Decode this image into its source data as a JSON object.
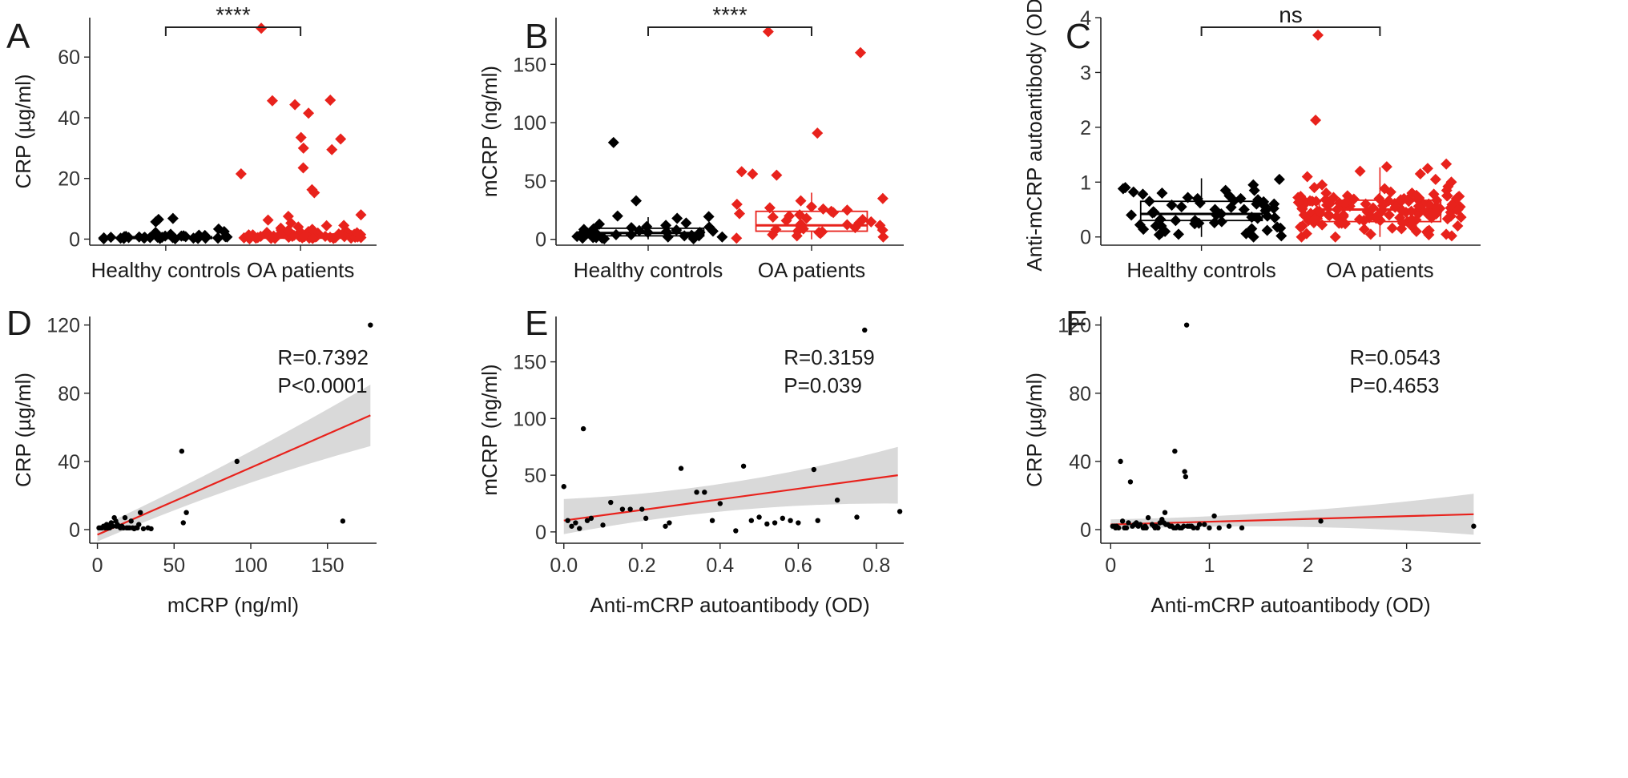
{
  "figure": {
    "colors": {
      "control": "#000000",
      "oa": "#e8221c",
      "fit_line": "#e8221c",
      "ci_band": "#d9d9d9",
      "scatter_point": "#000000"
    }
  },
  "chart_data": [
    {
      "panel": "A",
      "type": "box-scatter",
      "ylabel": "CRP (µg/ml)",
      "ylim": [
        -2,
        73
      ],
      "yticks": [
        0,
        20,
        40,
        60
      ],
      "categories": [
        "Healthy controls",
        "OA patients"
      ],
      "significance": "****",
      "series": [
        {
          "name": "Healthy controls",
          "color": "#000000",
          "box": {
            "q1": 0.2,
            "median": 0.5,
            "q3": 0.8,
            "whisker_low": 0,
            "whisker_high": 1.3
          },
          "values": [
            0.1,
            0.3,
            0.6,
            6.8,
            0.5,
            0.2,
            1.0,
            0.8,
            0.4,
            1.6,
            2.5,
            0.3,
            0.9,
            0.7,
            1.2,
            6.5,
            3.3,
            0.6,
            1.1,
            0.4,
            0.2,
            0.5,
            0.8,
            5.7,
            0.3,
            0.6,
            1.0,
            0.4,
            0.2,
            1.5,
            0.9,
            0.3,
            0.7,
            2.2,
            0.5,
            0.1,
            0.8,
            0.4,
            0.6,
            1.3
          ]
        },
        {
          "name": "OA patients",
          "color": "#e8221c",
          "box": {
            "q1": 0.3,
            "median": 0.9,
            "q3": 1.7,
            "whisker_low": 0,
            "whisker_high": 3.5
          },
          "values": [
            69.5,
            45.8,
            41.5,
            44.3,
            45.6,
            33,
            29.5,
            33.5,
            30,
            23.5,
            21.5,
            16.3,
            15.3,
            7.5,
            4.5,
            3.6,
            5.3,
            6.3,
            8.0,
            4.4,
            2.8,
            1.1,
            0.4,
            0.8,
            1.6,
            2.2,
            0.2,
            0.5,
            1.2,
            0.9,
            3.0,
            2.5,
            1.8,
            0.6,
            0.3,
            1.4,
            2.0,
            0.7,
            1.0,
            0.2,
            0.5,
            0.8,
            1.3,
            0.4,
            2.4,
            1.7,
            0.6,
            0.1,
            0.9,
            1.5,
            0.3,
            4.0,
            2.6,
            0.8,
            1.1,
            0.5,
            0.2,
            1.9,
            0.7,
            3.2,
            0.4,
            1.0,
            0.6,
            2.1,
            0.3,
            0.9,
            1.4,
            0.5,
            0.8,
            2.9,
            0.2,
            1.2
          ]
        }
      ]
    },
    {
      "panel": "B",
      "type": "box-scatter",
      "ylabel": "mCRP (ng/ml)",
      "ylim": [
        -5,
        190
      ],
      "yticks": [
        0,
        50,
        100,
        150
      ],
      "categories": [
        "Healthy controls",
        "OA patients"
      ],
      "significance": "****",
      "series": [
        {
          "name": "Healthy controls",
          "color": "#000000",
          "box": {
            "q1": 3,
            "median": 5.5,
            "q3": 9.5,
            "whisker_low": 0,
            "whisker_high": 19
          },
          "values": [
            83,
            33,
            20,
            19.5,
            12,
            10.5,
            8,
            7,
            6,
            5,
            4,
            3,
            2,
            1.5,
            1,
            0.5,
            11,
            7.5,
            4.5,
            2.5,
            9,
            6.5,
            3.5,
            1,
            13,
            5.5,
            2,
            8.5,
            0.5,
            4,
            14,
            3,
            6,
            1.5,
            10,
            18,
            7,
            2.5
          ]
        },
        {
          "name": "OA patients",
          "color": "#e8221c",
          "box": {
            "q1": 7,
            "median": 12,
            "q3": 24,
            "whisker_low": 0,
            "whisker_high": 40
          },
          "values": [
            178,
            160,
            91,
            58,
            56,
            55,
            35,
            33,
            30,
            28,
            26,
            25,
            24,
            22,
            21,
            20,
            19,
            18,
            16,
            15,
            14,
            13,
            12,
            11,
            10,
            9,
            8,
            7,
            6,
            5,
            4,
            3,
            2,
            1,
            17,
            23,
            12.5,
            8.5,
            6.5,
            27
          ]
        }
      ]
    },
    {
      "panel": "C",
      "type": "box-scatter",
      "ylabel": "Anti-mCRP autoantibody (OD)",
      "ylim": [
        -0.15,
        4.0
      ],
      "yticks": [
        0,
        1,
        2,
        3,
        4
      ],
      "categories": [
        "Healthy controls",
        "OA patients"
      ],
      "significance": "ns",
      "series": [
        {
          "name": "Healthy controls",
          "color": "#000000",
          "box": {
            "q1": 0.3,
            "median": 0.42,
            "q3": 0.65,
            "whisker_low": 0,
            "whisker_high": 1.07
          },
          "values": [
            1.05,
            0.95,
            0.9,
            0.88,
            0.85,
            0.82,
            0.8,
            0.78,
            0.75,
            0.72,
            0.7,
            0.68,
            0.66,
            0.64,
            0.62,
            0.6,
            0.58,
            0.56,
            0.54,
            0.52,
            0.5,
            0.48,
            0.46,
            0.44,
            0.42,
            0.4,
            0.38,
            0.36,
            0.34,
            0.32,
            0.3,
            0.28,
            0.26,
            0.24,
            0.22,
            0.2,
            0.18,
            0.16,
            0.14,
            0.12,
            0.1,
            0.08,
            0.06,
            0.04,
            0.02,
            0.0,
            0.45,
            0.55,
            0.35,
            0.25,
            0.65,
            0.15,
            0.5,
            0.4,
            0.6,
            0.3,
            0.7,
            0.2,
            0.05,
            0.85
          ]
        },
        {
          "name": "OA patients",
          "color": "#e8221c",
          "box": {
            "q1": 0.28,
            "median": 0.5,
            "q3": 0.67,
            "whisker_low": 0,
            "whisker_high": 1.27
          },
          "values": [
            3.68,
            2.13,
            1.33,
            1.28,
            1.25,
            1.2,
            1.15,
            1.1,
            1.05,
            1.0,
            0.95,
            0.92,
            0.9,
            0.88,
            0.85,
            0.82,
            0.8,
            0.78,
            0.76,
            0.74,
            0.72,
            0.7,
            0.68,
            0.66,
            0.64,
            0.62,
            0.6,
            0.58,
            0.56,
            0.54,
            0.52,
            0.5,
            0.48,
            0.46,
            0.44,
            0.42,
            0.4,
            0.38,
            0.36,
            0.34,
            0.32,
            0.3,
            0.28,
            0.26,
            0.24,
            0.22,
            0.2,
            0.18,
            0.16,
            0.14,
            0.12,
            0.1,
            0.08,
            0.06,
            0.04,
            0.02,
            0.0,
            0.55,
            0.45,
            0.65,
            0.35,
            0.75,
            0.25,
            0.5,
            0.6,
            0.4,
            0.7,
            0.3,
            0.8,
            0.2,
            0.15,
            0.05,
            0.57,
            0.47,
            0.67,
            0.37,
            0.52,
            0.62,
            0.42,
            0.72,
            0.32,
            0.58,
            0.48,
            0.68,
            0.38,
            0.53,
            0.63,
            0.43,
            0.73,
            0.33,
            0.5,
            0.55,
            0.45,
            0.6,
            0.4,
            0.65,
            0.35,
            0.7,
            0.3,
            0.75,
            0.25,
            0.51,
            0.61,
            0.41,
            0.71,
            0.31,
            0.54,
            0.64,
            0.44,
            0.74,
            0.34,
            0.56,
            0.46,
            0.66,
            0.36,
            0.59,
            0.49,
            0.69,
            0.39,
            0.57,
            0.47,
            0.67,
            0.37,
            0.52,
            0.42,
            0.62,
            0.32,
            0.58,
            0.48,
            0.68,
            0.38,
            0.53,
            0.43,
            0.63,
            0.33,
            0.5,
            0.6,
            0.4,
            0.7,
            0.3,
            0.55,
            0.65,
            0.45,
            0.35,
            0.75,
            0.25,
            0.2,
            0.1,
            0.0,
            0.05
          ]
        }
      ]
    },
    {
      "panel": "D",
      "type": "scatter",
      "xlabel": "mCRP (ng/ml)",
      "ylabel": "CRP (µg/ml)",
      "xlim": [
        -5,
        182
      ],
      "ylim": [
        -8,
        125
      ],
      "xticks": [
        0,
        50,
        100,
        150
      ],
      "yticks": [
        0,
        40,
        80,
        120
      ],
      "stats": {
        "r": "R=0.7392",
        "p": "P<0.0001"
      },
      "fit": {
        "x0": 0,
        "y0": -3,
        "x1": 178,
        "y1": 67,
        "ci_low_x0": -7,
        "ci_high_x0": 1,
        "ci_low_x1": 49,
        "ci_high_x1": 85
      },
      "x": [
        178,
        160,
        91,
        58,
        56,
        55,
        35,
        33,
        30,
        28,
        26,
        25,
        24,
        22,
        21,
        20,
        19,
        18,
        16,
        15,
        14,
        13,
        12,
        11,
        10,
        9,
        8,
        7,
        6,
        5,
        4,
        3,
        2,
        1,
        17,
        23,
        12.5,
        8.5,
        6.5,
        27
      ],
      "y": [
        120,
        5,
        40,
        10,
        4,
        46,
        0.5,
        1,
        0.5,
        10,
        1,
        1,
        0.5,
        5,
        1,
        1,
        1,
        7,
        2,
        1,
        2,
        3,
        5,
        7,
        2,
        4,
        1,
        1,
        3,
        1,
        2,
        1,
        1,
        1,
        1,
        1,
        2,
        3,
        1,
        3
      ]
    },
    {
      "panel": "E",
      "type": "scatter",
      "xlabel": "Anti-mCRP autoantibody (OD)",
      "ylabel": "mCRP (ng/ml)",
      "xlim": [
        -0.02,
        0.87
      ],
      "ylim": [
        -10,
        190
      ],
      "xticks": [
        0.0,
        0.2,
        0.4,
        0.6,
        0.8
      ],
      "yticks": [
        0,
        50,
        100,
        150
      ],
      "stats": {
        "r": "R=0.3159",
        "p": "P=0.039"
      },
      "fit": {
        "x0": 0,
        "y0": 10,
        "x1": 0.855,
        "y1": 50,
        "ci_low_x0": -2,
        "ci_high_x0": 29,
        "ci_low_x1": 25,
        "ci_high_x1": 75
      },
      "x": [
        0.77,
        0.05,
        0.0,
        0.3,
        0.46,
        0.64,
        0.34,
        0.12,
        0.02,
        0.06,
        0.21,
        0.17,
        0.38,
        0.48,
        0.52,
        0.56,
        0.7,
        0.75,
        0.86,
        0.26,
        0.27,
        0.1,
        0.04,
        0.07,
        0.36,
        0.54,
        0.58,
        0.6,
        0.01,
        0.2,
        0.44,
        0.5,
        0.65,
        0.4,
        0.03,
        0.15
      ],
      "y": [
        178,
        91,
        40,
        56,
        58,
        55,
        35,
        26,
        5,
        10,
        12,
        20,
        10,
        10,
        7,
        12,
        28,
        13,
        18,
        5,
        8,
        6,
        3,
        12,
        35,
        8,
        10,
        8,
        10,
        20,
        1,
        13,
        10,
        25,
        8,
        20
      ]
    },
    {
      "panel": "F",
      "type": "scatter",
      "xlabel": "Anti-mCRP autoantibody (OD)",
      "ylabel": "CRP (µg/ml)",
      "xlim": [
        -0.1,
        3.75
      ],
      "ylim": [
        -8,
        125
      ],
      "xticks": [
        0,
        1,
        2,
        3
      ],
      "yticks": [
        0,
        40,
        80,
        120
      ],
      "stats": {
        "r": "R=0.0543",
        "p": "P=0.4653"
      },
      "fit": {
        "x0": 0,
        "y0": 3,
        "x1": 3.68,
        "y1": 9,
        "ci_low_x0": 0,
        "ci_high_x0": 6,
        "ci_low_x1": -3,
        "ci_high_x1": 21
      },
      "x": [
        0.77,
        0.65,
        0.1,
        0.75,
        0.76,
        0.2,
        0.38,
        0.55,
        2.13,
        3.68,
        1.33,
        1.05,
        0.3,
        0.45,
        0.6,
        0.05,
        0.02,
        0.15,
        0.25,
        0.35,
        0.5,
        0.7,
        0.8,
        0.9,
        1.0,
        1.2,
        0.12,
        0.22,
        0.33,
        0.42,
        0.52,
        0.62,
        0.72,
        0.82,
        0.08,
        0.18,
        0.28,
        0.48,
        0.58,
        0.68,
        0.88,
        0.04,
        0.14,
        0.24,
        0.34,
        0.44,
        0.54,
        0.64,
        0.74,
        0.84,
        0.95,
        1.1,
        0.06,
        0.16,
        0.26,
        0.36,
        0.46,
        0.56,
        0.66,
        0.78
      ],
      "y": [
        120,
        46,
        40,
        34,
        31,
        28,
        7,
        10,
        5,
        2,
        1,
        8,
        3,
        1,
        2,
        1,
        2,
        1,
        3,
        2,
        4,
        1,
        2,
        3,
        1,
        2,
        5,
        2,
        1,
        3,
        6,
        2,
        1,
        2,
        1,
        4,
        2,
        1,
        3,
        2,
        1,
        2,
        1,
        3,
        1,
        2,
        4,
        1,
        2,
        1,
        3,
        1,
        2,
        1,
        4,
        1,
        2,
        3,
        1,
        2
      ]
    }
  ]
}
